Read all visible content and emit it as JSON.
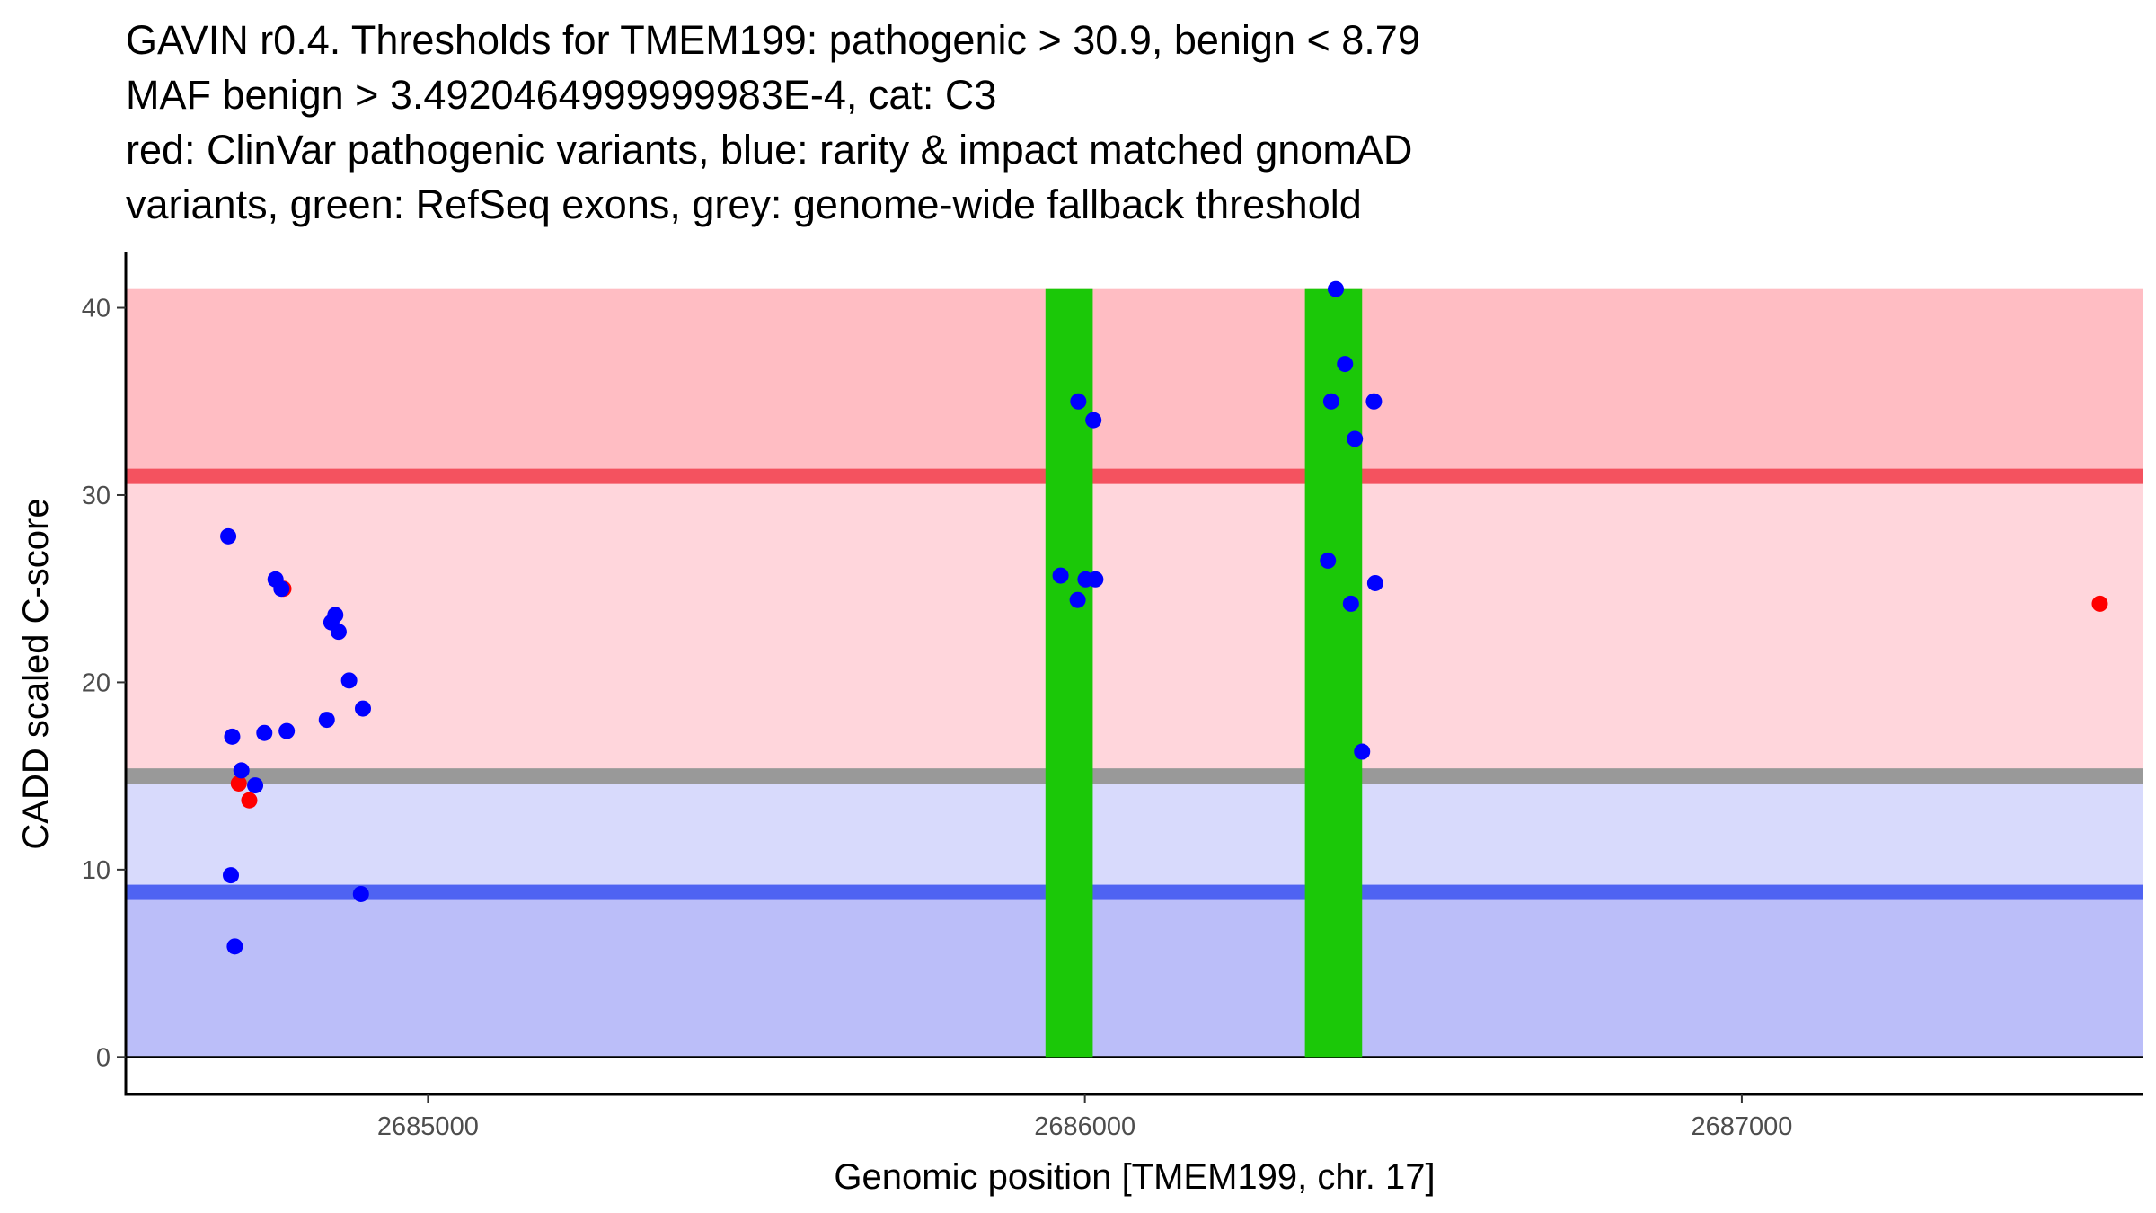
{
  "title_lines": [
    "GAVIN r0.4. Thresholds for TMEM199: pathogenic > 30.9, benign < 8.79",
    "MAF benign > 3.4920464999999983E-4, cat: C3",
    "red: ClinVar pathogenic variants, blue: rarity & impact matched gnomAD",
    "variants, green: RefSeq exons, grey: genome-wide fallback threshold"
  ],
  "colors": {
    "pathogenic_zone": "#ffbdc3",
    "mid_zone": "#ffd6dc",
    "benign_upper_zone": "#d8dafc",
    "benign_zone": "#bbbef9",
    "pathogenic_line": "#f4525f",
    "benign_line": "#4f63f2",
    "fallback_line": "#999999",
    "exon": "#1bc808",
    "clinvar_point": "#ff0000",
    "gnomad_point": "#0000ff"
  },
  "chart_data": {
    "type": "scatter",
    "xlabel": "Genomic position [TMEM199, chr. 17]",
    "ylabel": "CADD scaled C-score",
    "xlim": [
      2684540,
      2687610
    ],
    "ylim": [
      -2,
      43
    ],
    "x_ticks": [
      2685000,
      2686000,
      2687000
    ],
    "x_tick_labels": [
      "2685000",
      "2686000",
      "2687000"
    ],
    "y_ticks": [
      0,
      10,
      20,
      30,
      40
    ],
    "y_tick_labels": [
      "0",
      "10",
      "20",
      "30",
      "40"
    ],
    "thresholds": {
      "pathogenic": 30.9,
      "benign": 8.79,
      "fallback": 15.0
    },
    "bands": [
      {
        "name": "pathogenic-zone",
        "y0": 31.0,
        "y1": 41.0
      },
      {
        "name": "mid-zone",
        "y0": 15.0,
        "y1": 31.0
      },
      {
        "name": "benign-upper-zone",
        "y0": 8.8,
        "y1": 15.0
      },
      {
        "name": "benign-zone",
        "y0": 0.0,
        "y1": 8.8
      }
    ],
    "exons": [
      {
        "start": 2685940,
        "end": 2686012
      },
      {
        "start": 2686335,
        "end": 2686422
      }
    ],
    "series": [
      {
        "name": "ClinVar pathogenic variants",
        "color_key": "clinvar_point",
        "points": [
          {
            "x": 2684780,
            "y": 25.0
          },
          {
            "x": 2684712,
            "y": 14.6
          },
          {
            "x": 2684728,
            "y": 13.7
          },
          {
            "x": 2687545,
            "y": 24.2
          }
        ]
      },
      {
        "name": "rarity & impact matched gnomAD variants",
        "color_key": "gnomad_point",
        "points": [
          {
            "x": 2684696,
            "y": 27.8
          },
          {
            "x": 2684768,
            "y": 25.5
          },
          {
            "x": 2684777,
            "y": 25.0
          },
          {
            "x": 2684853,
            "y": 23.2
          },
          {
            "x": 2684859,
            "y": 23.6
          },
          {
            "x": 2684864,
            "y": 22.7
          },
          {
            "x": 2684880,
            "y": 20.1
          },
          {
            "x": 2684901,
            "y": 18.6
          },
          {
            "x": 2684846,
            "y": 18.0
          },
          {
            "x": 2684785,
            "y": 17.4
          },
          {
            "x": 2684751,
            "y": 17.3
          },
          {
            "x": 2684702,
            "y": 17.1
          },
          {
            "x": 2684716,
            "y": 15.3
          },
          {
            "x": 2684737,
            "y": 14.5
          },
          {
            "x": 2684700,
            "y": 9.7
          },
          {
            "x": 2684898,
            "y": 8.7
          },
          {
            "x": 2684706,
            "y": 5.9
          },
          {
            "x": 2685990,
            "y": 35.0
          },
          {
            "x": 2686013,
            "y": 34.0
          },
          {
            "x": 2685963,
            "y": 25.7
          },
          {
            "x": 2686001,
            "y": 25.5
          },
          {
            "x": 2686016,
            "y": 25.5
          },
          {
            "x": 2685989,
            "y": 24.4
          },
          {
            "x": 2686382,
            "y": 41.0
          },
          {
            "x": 2686396,
            "y": 37.0
          },
          {
            "x": 2686375,
            "y": 35.0
          },
          {
            "x": 2686440,
            "y": 35.0
          },
          {
            "x": 2686411,
            "y": 33.0
          },
          {
            "x": 2686370,
            "y": 26.5
          },
          {
            "x": 2686442,
            "y": 25.3
          },
          {
            "x": 2686405,
            "y": 24.2
          },
          {
            "x": 2686422,
            "y": 16.3
          }
        ]
      }
    ]
  }
}
